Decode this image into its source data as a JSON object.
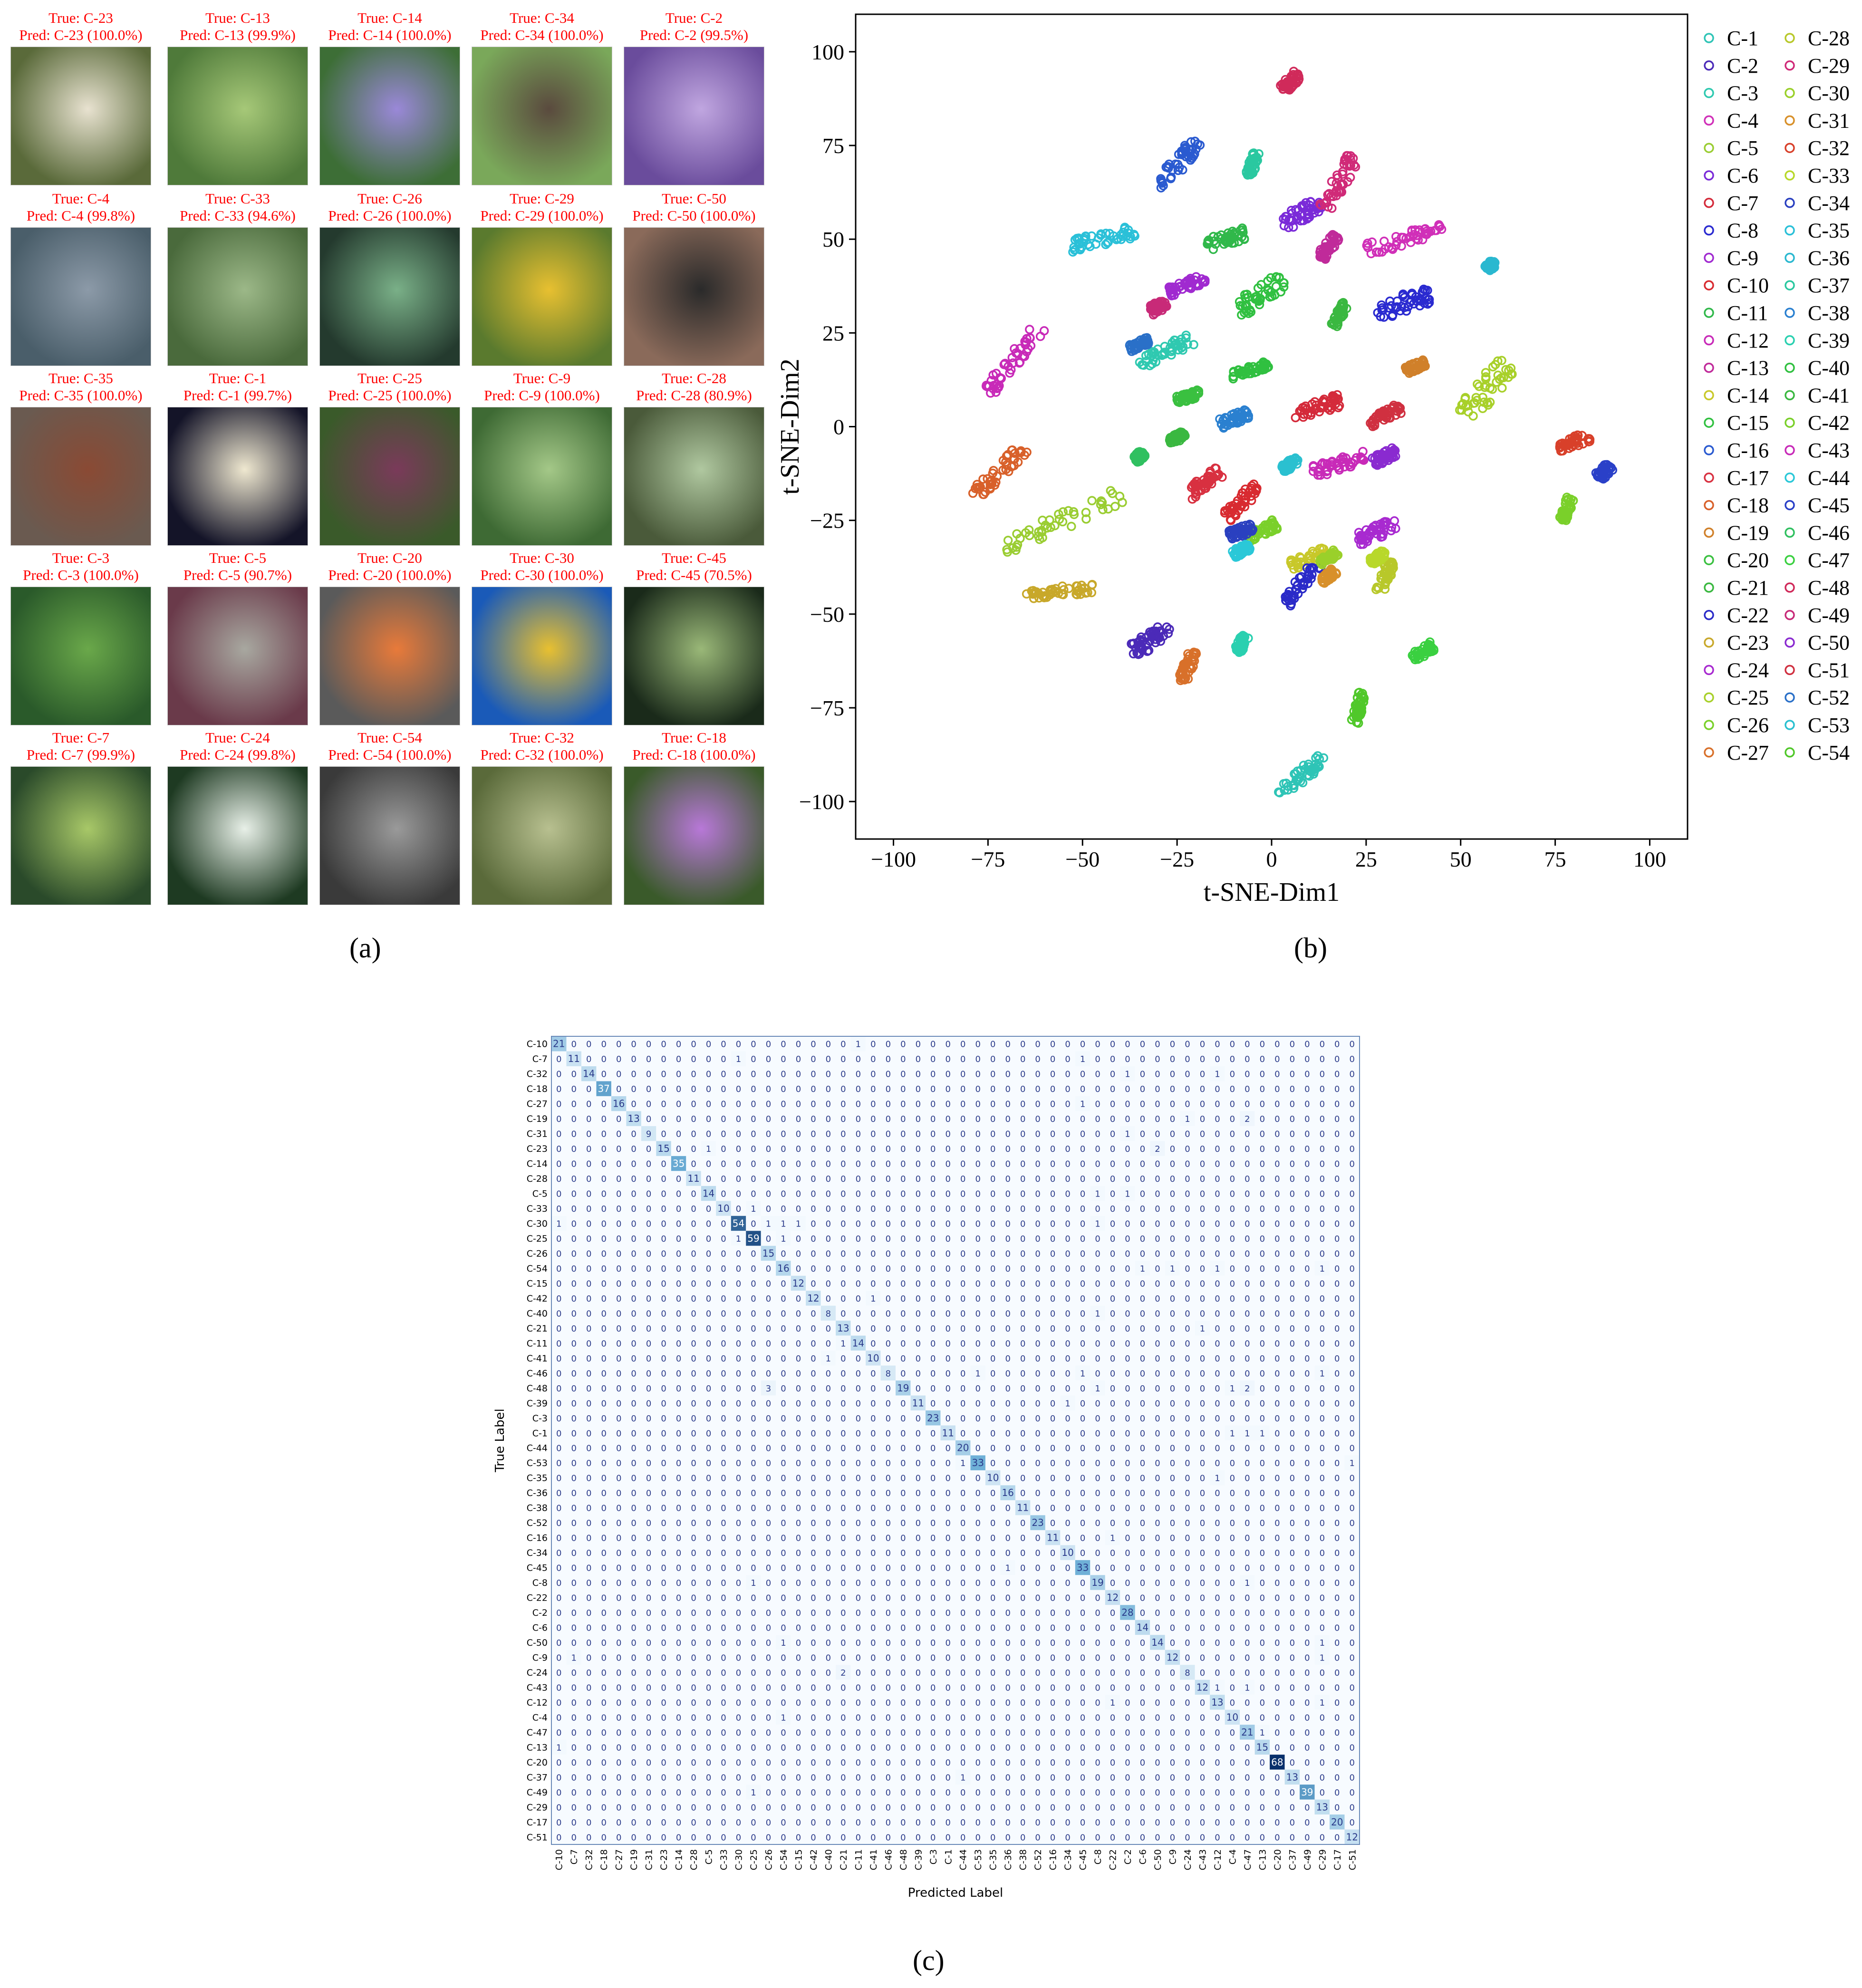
{
  "captions": {
    "a": "(a)",
    "b": "(b)",
    "c": "(c)"
  },
  "samples": [
    {
      "true": "True: C-23",
      "pred": "Pred: C-23 (100.0%)",
      "colors": [
        "#5a6a3a",
        "#e8e2d0"
      ]
    },
    {
      "true": "True: C-13",
      "pred": "Pred: C-13 (99.9%)",
      "colors": [
        "#4f7a3a",
        "#a6c878"
      ]
    },
    {
      "true": "True: C-14",
      "pred": "Pred: C-14 (100.0%)",
      "colors": [
        "#3d6e36",
        "#9a88d8"
      ]
    },
    {
      "true": "True: C-34",
      "pred": "Pred: C-34 (100.0%)",
      "colors": [
        "#7aa85a",
        "#5a4a3e"
      ]
    },
    {
      "true": "True: C-2",
      "pred": "Pred: C-2 (99.5%)",
      "colors": [
        "#6a4c9c",
        "#c0a6e0"
      ]
    },
    {
      "true": "True: C-4",
      "pred": "Pred: C-4 (99.8%)",
      "colors": [
        "#4a5e6a",
        "#8c9aa8"
      ]
    },
    {
      "true": "True: C-33",
      "pred": "Pred: C-33 (94.6%)",
      "colors": [
        "#4a6a3c",
        "#9cb888"
      ]
    },
    {
      "true": "True: C-26",
      "pred": "Pred: C-26 (100.0%)",
      "colors": [
        "#243a2e",
        "#7ab088"
      ]
    },
    {
      "true": "True: C-29",
      "pred": "Pred: C-29 (100.0%)",
      "colors": [
        "#5a7a2e",
        "#e8c030"
      ]
    },
    {
      "true": "True: C-50",
      "pred": "Pred: C-50 (100.0%)",
      "colors": [
        "#8a6a5a",
        "#2a2a2a"
      ]
    },
    {
      "true": "True: C-35",
      "pred": "Pred: C-35 (100.0%)",
      "colors": [
        "#6a5a50",
        "#8a4a34"
      ]
    },
    {
      "true": "True: C-1",
      "pred": "Pred: C-1 (99.7%)",
      "colors": [
        "#141428",
        "#efe8d0"
      ]
    },
    {
      "true": "True: C-25",
      "pred": "Pred: C-25 (100.0%)",
      "colors": [
        "#3a5a2a",
        "#7a3a5a"
      ]
    },
    {
      "true": "True: C-9",
      "pred": "Pred: C-9 (100.0%)",
      "colors": [
        "#3e6a34",
        "#a4c888"
      ]
    },
    {
      "true": "True: C-28",
      "pred": "Pred: C-28 (80.9%)",
      "colors": [
        "#4a5a3a",
        "#b0c8a0"
      ]
    },
    {
      "true": "True: C-3",
      "pred": "Pred: C-3 (100.0%)",
      "colors": [
        "#2a5a2a",
        "#6aa84a"
      ]
    },
    {
      "true": "True: C-5",
      "pred": "Pred: C-5 (90.7%)",
      "colors": [
        "#6a3a4a",
        "#a8a8a0"
      ]
    },
    {
      "true": "True: C-20",
      "pred": "Pred: C-20 (100.0%)",
      "colors": [
        "#5a5a5a",
        "#e87a3a"
      ]
    },
    {
      "true": "True: C-30",
      "pred": "Pred: C-30 (100.0%)",
      "colors": [
        "#1a5ab8",
        "#e8c030"
      ]
    },
    {
      "true": "True: C-45",
      "pred": "Pred: C-45 (70.5%)",
      "colors": [
        "#1a2a1a",
        "#9ab878"
      ]
    },
    {
      "true": "True: C-7",
      "pred": "Pred: C-7 (99.9%)",
      "colors": [
        "#2a4a2a",
        "#a8c868"
      ]
    },
    {
      "true": "True: C-24",
      "pred": "Pred: C-24 (99.8%)",
      "colors": [
        "#1e3a22",
        "#e8f0e8"
      ]
    },
    {
      "true": "True: C-54",
      "pred": "Pred: C-54 (100.0%)",
      "colors": [
        "#3a3a3a",
        "#9a9a9a"
      ]
    },
    {
      "true": "True: C-32",
      "pred": "Pred: C-32 (100.0%)",
      "colors": [
        "#5a6a3a",
        "#b8c090"
      ]
    },
    {
      "true": "True: C-18",
      "pred": "Pred: C-18 (100.0%)",
      "colors": [
        "#3a5a2a",
        "#b878d8"
      ]
    }
  ],
  "chart_data": [
    {
      "type": "scatter",
      "xlabel": "t-SNE-Dim1",
      "ylabel": "t-SNE-Dim2",
      "xlim": [
        -110,
        110
      ],
      "ylim": [
        -110,
        110
      ],
      "xticks": [
        -100,
        -75,
        -50,
        -25,
        0,
        25,
        50,
        75,
        100
      ],
      "yticks": [
        -100,
        -75,
        -50,
        -25,
        0,
        25,
        50,
        75,
        100
      ],
      "xtick_labels": [
        "−100",
        "−75",
        "−50",
        "−25",
        "0",
        "25",
        "50",
        "75",
        "100"
      ],
      "ytick_labels": [
        "−100",
        "−75",
        "−50",
        "−25",
        "0",
        "25",
        "50",
        "75",
        "100"
      ],
      "grid": false,
      "legend_position": "right",
      "legend_columns": 2,
      "series": [
        {
          "name": "C-1",
          "color": "#2ec4b6",
          "cx": 8,
          "cy": -93,
          "dx": 12,
          "dy": 10,
          "w": 5
        },
        {
          "name": "C-2",
          "color": "#4b2ab8",
          "cx": -32,
          "cy": -57,
          "dx": 10,
          "dy": 6,
          "w": 6
        },
        {
          "name": "C-3",
          "color": "#2fc9b0",
          "cx": -28,
          "cy": 20,
          "dx": 14,
          "dy": 7,
          "w": 5
        },
        {
          "name": "C-4",
          "color": "#d02fb8",
          "cx": 35,
          "cy": 50,
          "dx": 20,
          "dy": 6,
          "w": 5
        },
        {
          "name": "C-5",
          "color": "#9acd32",
          "cx": -55,
          "cy": -25,
          "dx": 32,
          "dy": 14,
          "w": 7
        },
        {
          "name": "C-6",
          "color": "#7a2ad8",
          "cx": 8,
          "cy": 57,
          "dx": 10,
          "dy": 6,
          "w": 6
        },
        {
          "name": "C-7",
          "color": "#d42a3a",
          "cx": 12,
          "cy": 5,
          "dx": 12,
          "dy": 4,
          "w": 5
        },
        {
          "name": "C-8",
          "color": "#2a2ad0",
          "cx": 35,
          "cy": 33,
          "dx": 14,
          "dy": 5,
          "w": 7
        },
        {
          "name": "C-9",
          "color": "#a02ad0",
          "cx": -22,
          "cy": 38,
          "dx": 10,
          "dy": 4,
          "w": 4
        },
        {
          "name": "C-10",
          "color": "#d82a30",
          "cx": -8,
          "cy": -20,
          "dx": 8,
          "dy": 8,
          "w": 5
        },
        {
          "name": "C-11",
          "color": "#30b84a",
          "cx": -12,
          "cy": 50,
          "dx": 10,
          "dy": 3,
          "w": 5
        },
        {
          "name": "C-12",
          "color": "#c82ab8",
          "cx": 18,
          "cy": -10,
          "dx": 14,
          "dy": 4,
          "w": 5
        },
        {
          "name": "C-13",
          "color": "#c02a9a",
          "cx": 15,
          "cy": 48,
          "dx": 4,
          "dy": 6,
          "w": 4
        },
        {
          "name": "C-14",
          "color": "#c8c82a",
          "cx": 10,
          "cy": -35,
          "dx": 10,
          "dy": 4,
          "w": 4
        },
        {
          "name": "C-15",
          "color": "#30c040",
          "cx": -3,
          "cy": 35,
          "dx": 12,
          "dy": 8,
          "w": 7
        },
        {
          "name": "C-16",
          "color": "#2a5ad0",
          "cx": -25,
          "cy": 70,
          "dx": 10,
          "dy": 12,
          "w": 6
        },
        {
          "name": "C-17",
          "color": "#d83040",
          "cx": -18,
          "cy": -15,
          "dx": 8,
          "dy": 6,
          "w": 5
        },
        {
          "name": "C-18",
          "color": "#d8602a",
          "cx": -72,
          "cy": -12,
          "dx": 14,
          "dy": 14,
          "w": 5
        },
        {
          "name": "C-19",
          "color": "#d0802a",
          "cx": 38,
          "cy": 16,
          "dx": 5,
          "dy": 2,
          "w": 3
        },
        {
          "name": "C-20",
          "color": "#3ac040",
          "cx": -22,
          "cy": 8,
          "dx": 6,
          "dy": 2,
          "w": 3
        },
        {
          "name": "C-21",
          "color": "#3ab840",
          "cx": 18,
          "cy": 30,
          "dx": 3,
          "dy": 6,
          "w": 3
        },
        {
          "name": "C-22",
          "color": "#2a2ac8",
          "cx": 8,
          "cy": -42,
          "dx": 8,
          "dy": 10,
          "w": 5
        },
        {
          "name": "C-23",
          "color": "#c8a82a",
          "cx": -56,
          "cy": -44,
          "dx": 18,
          "dy": 2,
          "w": 4
        },
        {
          "name": "C-24",
          "color": "#a82ad0",
          "cx": 28,
          "cy": -28,
          "dx": 10,
          "dy": 4,
          "w": 5
        },
        {
          "name": "C-25",
          "color": "#a8d02a",
          "cx": 57,
          "cy": 10,
          "dx": 12,
          "dy": 14,
          "w": 9
        },
        {
          "name": "C-26",
          "color": "#7ad02a",
          "cx": -3,
          "cy": -28,
          "dx": 8,
          "dy": 4,
          "w": 4
        },
        {
          "name": "C-27",
          "color": "#d8702a",
          "cx": -22,
          "cy": -64,
          "dx": 3,
          "dy": 8,
          "w": 4
        },
        {
          "name": "C-28",
          "color": "#b8c82a",
          "cx": 30,
          "cy": -40,
          "dx": 3,
          "dy": 8,
          "w": 4
        },
        {
          "name": "C-29",
          "color": "#d02a78",
          "cx": 18,
          "cy": 65,
          "dx": 8,
          "dy": 14,
          "w": 6
        },
        {
          "name": "C-30",
          "color": "#9ad02a",
          "cx": 15,
          "cy": -35,
          "dx": 4,
          "dy": 3,
          "w": 3
        },
        {
          "name": "C-31",
          "color": "#d8902a",
          "cx": 15,
          "cy": -40,
          "dx": 3,
          "dy": 3,
          "w": 3
        },
        {
          "name": "C-32",
          "color": "#d8402a",
          "cx": 80,
          "cy": -4,
          "dx": 8,
          "dy": 3,
          "w": 4
        },
        {
          "name": "C-33",
          "color": "#b8d82a",
          "cx": 28,
          "cy": -35,
          "dx": 4,
          "dy": 3,
          "w": 3
        },
        {
          "name": "C-34",
          "color": "#2a40c0",
          "cx": -8,
          "cy": -28,
          "dx": 6,
          "dy": 2,
          "w": 4
        },
        {
          "name": "C-35",
          "color": "#2ac0d8",
          "cx": -45,
          "cy": 50,
          "dx": 18,
          "dy": 4,
          "w": 5
        },
        {
          "name": "C-36",
          "color": "#2ab8d0",
          "cx": 58,
          "cy": 43,
          "dx": 2,
          "dy": 2,
          "w": 3
        },
        {
          "name": "C-37",
          "color": "#2ac8a0",
          "cx": -5,
          "cy": 70,
          "dx": 2,
          "dy": 6,
          "w": 3
        },
        {
          "name": "C-38",
          "color": "#2a80d0",
          "cx": -10,
          "cy": 2,
          "dx": 8,
          "dy": 3,
          "w": 4
        },
        {
          "name": "C-39",
          "color": "#2ad0b0",
          "cx": -8,
          "cy": -58,
          "dx": 2,
          "dy": 4,
          "w": 3
        },
        {
          "name": "C-40",
          "color": "#30c040",
          "cx": -6,
          "cy": 15,
          "dx": 10,
          "dy": 3,
          "w": 3
        },
        {
          "name": "C-41",
          "color": "#3ab840",
          "cx": -25,
          "cy": -3,
          "dx": 4,
          "dy": 2,
          "w": 3
        },
        {
          "name": "C-42",
          "color": "#7ad02a",
          "cx": 78,
          "cy": -22,
          "dx": 2,
          "dy": 6,
          "w": 3
        },
        {
          "name": "C-43",
          "color": "#c82ab8",
          "cx": -68,
          "cy": 18,
          "dx": 14,
          "dy": 18,
          "w": 6
        },
        {
          "name": "C-44",
          "color": "#2ac8d8",
          "cx": -8,
          "cy": -33,
          "dx": 4,
          "dy": 2,
          "w": 3
        },
        {
          "name": "C-45",
          "color": "#2a40c8",
          "cx": 88,
          "cy": -12,
          "dx": 3,
          "dy": 3,
          "w": 4
        },
        {
          "name": "C-46",
          "color": "#30c060",
          "cx": -35,
          "cy": -8,
          "dx": 2,
          "dy": 2,
          "w": 3
        },
        {
          "name": "C-47",
          "color": "#3ad040",
          "cx": 40,
          "cy": -60,
          "dx": 5,
          "dy": 3,
          "w": 4
        },
        {
          "name": "C-48",
          "color": "#d02a5a",
          "cx": 5,
          "cy": 92,
          "dx": 4,
          "dy": 4,
          "w": 4
        },
        {
          "name": "C-49",
          "color": "#c82a78",
          "cx": -30,
          "cy": 32,
          "dx": 4,
          "dy": 2,
          "w": 4
        },
        {
          "name": "C-50",
          "color": "#8a2ad0",
          "cx": 30,
          "cy": -8,
          "dx": 6,
          "dy": 3,
          "w": 4
        },
        {
          "name": "C-51",
          "color": "#d03040",
          "cx": 30,
          "cy": 3,
          "dx": 8,
          "dy": 4,
          "w": 4
        },
        {
          "name": "C-52",
          "color": "#2a70c8",
          "cx": -35,
          "cy": 22,
          "dx": 5,
          "dy": 2,
          "w": 3
        },
        {
          "name": "C-53",
          "color": "#2ac0d0",
          "cx": 5,
          "cy": -10,
          "dx": 4,
          "dy": 3,
          "w": 3
        },
        {
          "name": "C-54",
          "color": "#50c82a",
          "cx": 23,
          "cy": -75,
          "dx": 2,
          "dy": 8,
          "w": 3
        }
      ]
    },
    {
      "type": "heatmap",
      "xlabel": "Predicted Label",
      "ylabel": "True Label",
      "labels": [
        "C-10",
        "C-7",
        "C-32",
        "C-18",
        "C-27",
        "C-19",
        "C-31",
        "C-23",
        "C-14",
        "C-28",
        "C-5",
        "C-33",
        "C-30",
        "C-25",
        "C-26",
        "C-54",
        "C-15",
        "C-42",
        "C-40",
        "C-21",
        "C-11",
        "C-41",
        "C-46",
        "C-48",
        "C-39",
        "C-3",
        "C-1",
        "C-44",
        "C-53",
        "C-35",
        "C-36",
        "C-38",
        "C-52",
        "C-16",
        "C-34",
        "C-45",
        "C-8",
        "C-22",
        "C-2",
        "C-6",
        "C-50",
        "C-9",
        "C-24",
        "C-43",
        "C-12",
        "C-4",
        "C-47",
        "C-13",
        "C-20",
        "C-37",
        "C-49",
        "C-29",
        "C-17",
        "C-51"
      ],
      "diagonal": [
        21,
        11,
        14,
        37,
        16,
        13,
        9,
        15,
        35,
        11,
        14,
        10,
        54,
        59,
        15,
        16,
        12,
        12,
        8,
        13,
        14,
        10,
        8,
        19,
        11,
        23,
        11,
        20,
        33,
        10,
        16,
        11,
        23,
        11,
        10,
        33,
        19,
        12,
        28,
        14,
        14,
        12,
        8,
        12,
        13,
        10,
        21,
        15,
        68,
        13,
        39,
        13,
        20,
        12
      ],
      "off_diagonal": [
        [
          0,
          20,
          1
        ],
        [
          1,
          12,
          1
        ],
        [
          1,
          35,
          1
        ],
        [
          2,
          38,
          1
        ],
        [
          2,
          44,
          1
        ],
        [
          4,
          35,
          1
        ],
        [
          5,
          42,
          1
        ],
        [
          5,
          46,
          2
        ],
        [
          6,
          38,
          1
        ],
        [
          7,
          40,
          2
        ],
        [
          7,
          10,
          1
        ],
        [
          10,
          36,
          1
        ],
        [
          10,
          38,
          1
        ],
        [
          11,
          13,
          1
        ],
        [
          12,
          0,
          1
        ],
        [
          12,
          14,
          1
        ],
        [
          12,
          15,
          1
        ],
        [
          12,
          16,
          1
        ],
        [
          12,
          36,
          1
        ],
        [
          13,
          12,
          1
        ],
        [
          13,
          15,
          1
        ],
        [
          15,
          39,
          1
        ],
        [
          15,
          41,
          1
        ],
        [
          15,
          44,
          1
        ],
        [
          15,
          51,
          1
        ],
        [
          17,
          21,
          1
        ],
        [
          18,
          36,
          1
        ],
        [
          19,
          43,
          1
        ],
        [
          20,
          19,
          1
        ],
        [
          21,
          18,
          1
        ],
        [
          22,
          28,
          1
        ],
        [
          22,
          35,
          1
        ],
        [
          22,
          51,
          1
        ],
        [
          23,
          14,
          3
        ],
        [
          23,
          36,
          1
        ],
        [
          23,
          45,
          1
        ],
        [
          23,
          46,
          2
        ],
        [
          24,
          34,
          1
        ],
        [
          26,
          45,
          1
        ],
        [
          26,
          46,
          1
        ],
        [
          26,
          47,
          1
        ],
        [
          28,
          27,
          1
        ],
        [
          28,
          53,
          1
        ],
        [
          29,
          44,
          1
        ],
        [
          33,
          37,
          1
        ],
        [
          35,
          30,
          1
        ],
        [
          36,
          13,
          1
        ],
        [
          36,
          46,
          1
        ],
        [
          40,
          15,
          1
        ],
        [
          40,
          51,
          1
        ],
        [
          41,
          1,
          1
        ],
        [
          41,
          51,
          1
        ],
        [
          42,
          19,
          2
        ],
        [
          43,
          44,
          1
        ],
        [
          43,
          46,
          1
        ],
        [
          44,
          37,
          1
        ],
        [
          44,
          51,
          1
        ],
        [
          45,
          15,
          1
        ],
        [
          46,
          47,
          1
        ],
        [
          47,
          0,
          1
        ],
        [
          49,
          27,
          1
        ],
        [
          50,
          13,
          1
        ]
      ]
    }
  ]
}
